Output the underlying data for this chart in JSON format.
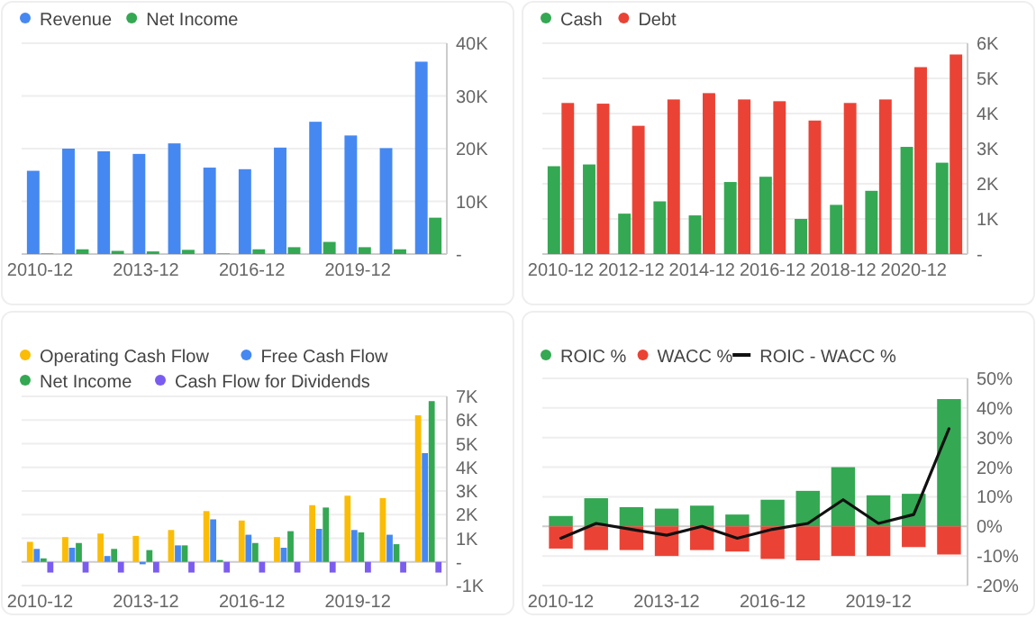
{
  "chart_data": [
    {
      "type": "bar",
      "categories": [
        "2010-12",
        null,
        null,
        "2013-12",
        null,
        null,
        "2016-12",
        null,
        null,
        "2019-12",
        null,
        null
      ],
      "legend": "top left",
      "grid": "y",
      "ylim": [
        0,
        40000
      ],
      "yticks": [
        {
          "value": 0,
          "label": "-"
        },
        {
          "value": 10000,
          "label": "10K"
        },
        {
          "value": 20000,
          "label": "20K"
        },
        {
          "value": 30000,
          "label": "30K"
        },
        {
          "value": 40000,
          "label": "40K"
        }
      ],
      "series": [
        {
          "name": "Revenue",
          "color": "#4688f1",
          "values": [
            15800,
            20000,
            19500,
            19000,
            21000,
            16400,
            16100,
            20200,
            25100,
            22500,
            20100,
            36500
          ]
        },
        {
          "name": "Net Income",
          "color": "#34a853",
          "values": [
            100,
            900,
            600,
            500,
            800,
            100,
            900,
            1300,
            2300,
            1300,
            900,
            6900
          ]
        }
      ]
    },
    {
      "type": "bar",
      "categories": [
        "2010-12",
        null,
        "2012-12",
        null,
        "2014-12",
        null,
        "2016-12",
        null,
        "2018-12",
        null,
        "2020-12",
        null
      ],
      "legend": "top left",
      "grid": "y",
      "ylim": [
        0,
        6000
      ],
      "yticks": [
        {
          "value": 0,
          "label": "-"
        },
        {
          "value": 1000,
          "label": "1K"
        },
        {
          "value": 2000,
          "label": "2K"
        },
        {
          "value": 3000,
          "label": "3K"
        },
        {
          "value": 4000,
          "label": "4K"
        },
        {
          "value": 5000,
          "label": "5K"
        },
        {
          "value": 6000,
          "label": "6K"
        }
      ],
      "series": [
        {
          "name": "Cash",
          "color": "#34a853",
          "values": [
            2500,
            2550,
            1150,
            1500,
            1100,
            2050,
            2200,
            1000,
            1400,
            1800,
            3050,
            2600
          ]
        },
        {
          "name": "Debt",
          "color": "#ea4335",
          "values": [
            4300,
            4280,
            3650,
            4400,
            4580,
            4400,
            4350,
            3800,
            4300,
            4400,
            5320,
            5680
          ]
        }
      ]
    },
    {
      "type": "bar",
      "categories": [
        "2010-12",
        null,
        null,
        "2013-12",
        null,
        null,
        "2016-12",
        null,
        null,
        "2019-12",
        null,
        null
      ],
      "legend": "top left",
      "grid": "y",
      "ylim": [
        -1000,
        7000
      ],
      "yticks": [
        {
          "value": -1000,
          "label": "-1K"
        },
        {
          "value": 0,
          "label": "-"
        },
        {
          "value": 1000,
          "label": "1K"
        },
        {
          "value": 2000,
          "label": "2K"
        },
        {
          "value": 3000,
          "label": "3K"
        },
        {
          "value": 4000,
          "label": "4K"
        },
        {
          "value": 5000,
          "label": "5K"
        },
        {
          "value": 6000,
          "label": "6K"
        },
        {
          "value": 7000,
          "label": "7K"
        }
      ],
      "series": [
        {
          "name": "Operating Cash Flow",
          "color": "#fbbc05",
          "values": [
            850,
            1050,
            1200,
            1100,
            1350,
            2150,
            1750,
            1050,
            2400,
            2800,
            2700,
            6200
          ]
        },
        {
          "name": "Free Cash Flow",
          "color": "#4688f1",
          "values": [
            550,
            600,
            250,
            -100,
            700,
            1800,
            1150,
            600,
            1400,
            1350,
            1150,
            4600
          ]
        },
        {
          "name": "Net Income",
          "color": "#34a853",
          "values": [
            150,
            800,
            550,
            500,
            700,
            80,
            800,
            1300,
            2300,
            1250,
            750,
            6800
          ]
        },
        {
          "name": "Cash Flow for Dividends",
          "color": "#7b5cf0",
          "values": [
            -450,
            -450,
            -450,
            -450,
            -450,
            -450,
            -450,
            -450,
            -450,
            -450,
            -450,
            -450
          ]
        }
      ]
    },
    {
      "type": "bar",
      "stacked": true,
      "categories": [
        "2010-12",
        null,
        null,
        "2013-12",
        null,
        null,
        "2016-12",
        null,
        null,
        "2019-12",
        null,
        null
      ],
      "legend": "top left",
      "grid": "y",
      "ylim": [
        -20,
        50
      ],
      "yticks": [
        {
          "value": -20,
          "label": "-20%"
        },
        {
          "value": -10,
          "label": "-10%"
        },
        {
          "value": 0,
          "label": "0%"
        },
        {
          "value": 10,
          "label": "10%"
        },
        {
          "value": 20,
          "label": "20%"
        },
        {
          "value": 30,
          "label": "30%"
        },
        {
          "value": 40,
          "label": "40%"
        },
        {
          "value": 50,
          "label": "50%"
        }
      ],
      "series": [
        {
          "name": "ROIC %",
          "color": "#34a853",
          "values": [
            3.5,
            9.5,
            6.5,
            6,
            7,
            4,
            9,
            12,
            20,
            10.5,
            11,
            43
          ]
        },
        {
          "name": "WACC %",
          "color": "#ea4335",
          "values": [
            -7.5,
            -8,
            -8,
            -10,
            -8,
            -8.5,
            -11,
            -11.5,
            -10,
            -10,
            -7,
            -9.5
          ]
        },
        {
          "name": "ROIC - WACC %",
          "type": "line",
          "color": "#111111",
          "values": [
            -4,
            1,
            -1,
            -3,
            0,
            -4,
            -1,
            1,
            9,
            1,
            4,
            33
          ]
        }
      ]
    }
  ]
}
